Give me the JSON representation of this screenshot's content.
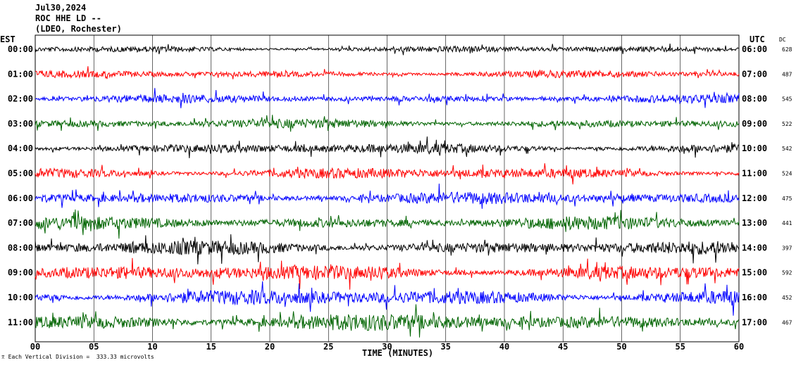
{
  "header": {
    "date": "Jul30,2024",
    "station": "ROC HHE LD --",
    "location": "(LDEO, Rochester)"
  },
  "left_zone_label": "EST",
  "right_zone_label": "UTC",
  "dc_label": "DC",
  "scale_note": "Each Vertical Division =  333.33 microvolts",
  "colors": {
    "black": "#000000",
    "red": "#ff0000",
    "blue": "#0000ff",
    "green": "#006400"
  },
  "chart_data": {
    "type": "line",
    "title": "",
    "xlabel": "TIME (MINUTES)",
    "ylabel": "",
    "xlim": [
      0,
      60
    ],
    "x_ticks": [
      0,
      5,
      10,
      15,
      20,
      25,
      30,
      35,
      40,
      45,
      50,
      55,
      60
    ],
    "x_tick_labels": [
      "00",
      "05",
      "10",
      "15",
      "20",
      "25",
      "30",
      "35",
      "40",
      "45",
      "50",
      "55",
      "60"
    ],
    "grid": true,
    "series": [
      {
        "left_label": "00:00",
        "right_label": "06:00",
        "dc": "628",
        "color": "#000000"
      },
      {
        "left_label": "01:00",
        "right_label": "07:00",
        "dc": "487",
        "color": "#ff0000"
      },
      {
        "left_label": "02:00",
        "right_label": "08:00",
        "dc": "545",
        "color": "#0000ff"
      },
      {
        "left_label": "03:00",
        "right_label": "09:00",
        "dc": "522",
        "color": "#006400"
      },
      {
        "left_label": "04:00",
        "right_label": "10:00",
        "dc": "542",
        "color": "#000000"
      },
      {
        "left_label": "05:00",
        "right_label": "11:00",
        "dc": "524",
        "color": "#ff0000"
      },
      {
        "left_label": "06:00",
        "right_label": "12:00",
        "dc": "475",
        "color": "#0000ff"
      },
      {
        "left_label": "07:00",
        "right_label": "13:00",
        "dc": "441",
        "color": "#006400"
      },
      {
        "left_label": "08:00",
        "right_label": "14:00",
        "dc": "397",
        "color": "#000000"
      },
      {
        "left_label": "09:00",
        "right_label": "15:00",
        "dc": "592",
        "color": "#ff0000"
      },
      {
        "left_label": "10:00",
        "right_label": "16:00",
        "dc": "452",
        "color": "#0000ff"
      },
      {
        "left_label": "11:00",
        "right_label": "17:00",
        "dc": "467",
        "color": "#006400"
      }
    ]
  }
}
